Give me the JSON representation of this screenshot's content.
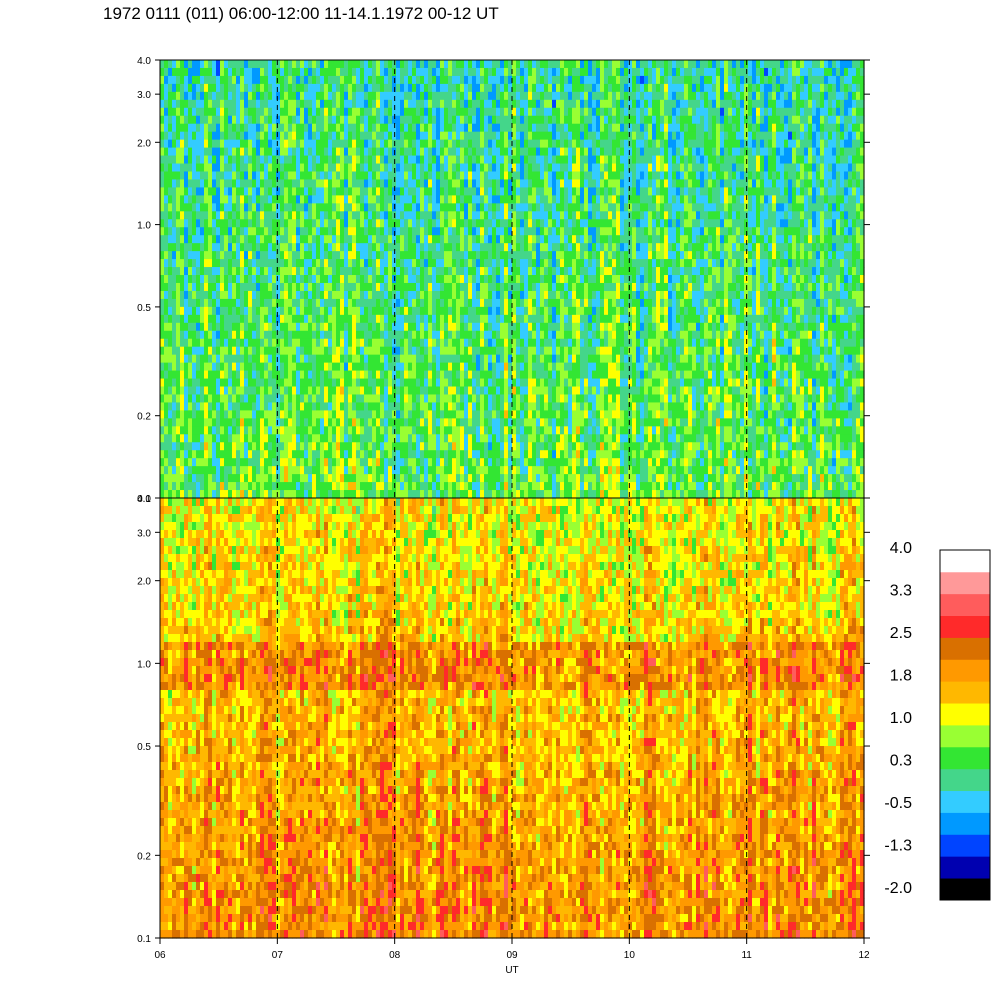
{
  "title": "1972 0111 (011) 06:00-12:00 11-14.1.1972  00-12 UT",
  "chart_data": {
    "type": "heatmap",
    "panels": [
      {
        "name": "",
        "x_range": [
          6,
          12
        ],
        "y_range": [
          0.1,
          4.0
        ],
        "y_scale": "log",
        "y_ticks": [
          {
            "value": 0.1,
            "label": "0.1"
          },
          {
            "value": 0.2,
            "label": "0.2"
          },
          {
            "value": 0.5,
            "label": "0.5"
          },
          {
            "value": 1.0,
            "label": "1.0"
          },
          {
            "value": 2.0,
            "label": "2.0"
          },
          {
            "value": 3.0,
            "label": "3.0"
          },
          {
            "value": 4.0,
            "label": "4.0"
          }
        ],
        "typical_level": 0.3
      },
      {
        "name": "",
        "x_range": [
          6,
          12
        ],
        "y_range": [
          0.1,
          4.0
        ],
        "y_scale": "log",
        "y_ticks": [
          {
            "value": 0.1,
            "label": "0.1"
          },
          {
            "value": 0.2,
            "label": "0.2"
          },
          {
            "value": 0.5,
            "label": "0.5"
          },
          {
            "value": 1.0,
            "label": "1.0"
          },
          {
            "value": 2.0,
            "label": "2.0"
          },
          {
            "value": 3.0,
            "label": "3.0"
          },
          {
            "value": 4.0,
            "label": "4.0"
          }
        ],
        "typical_level": 1.5
      }
    ],
    "x_ticks": [
      {
        "value": 6,
        "label": "06"
      },
      {
        "value": 7,
        "label": "07"
      },
      {
        "value": 8,
        "label": "08"
      },
      {
        "value": 9,
        "label": "09"
      },
      {
        "value": 10,
        "label": "10"
      },
      {
        "value": 11,
        "label": "11"
      },
      {
        "value": 12,
        "label": "12"
      }
    ],
    "x_gridlines": [
      7,
      8,
      9,
      10,
      11
    ],
    "xlabel": "UT",
    "ylabel": "",
    "colorbar": {
      "min": -2.0,
      "max": 4.0,
      "levels": [
        "#000000",
        "#0000b0",
        "#0044ff",
        "#0099ff",
        "#33ccff",
        "#44d68a",
        "#33e633",
        "#99ff33",
        "#ffff00",
        "#ffb800",
        "#ff9900",
        "#d97000",
        "#ff2a2a",
        "#ff5c5c",
        "#ff9999",
        "#ffffff"
      ],
      "labels": [
        "4.0",
        "3.3",
        "2.5",
        "1.8",
        "1.0",
        "0.3",
        "-0.5",
        "-1.3",
        "-2.0"
      ]
    }
  }
}
